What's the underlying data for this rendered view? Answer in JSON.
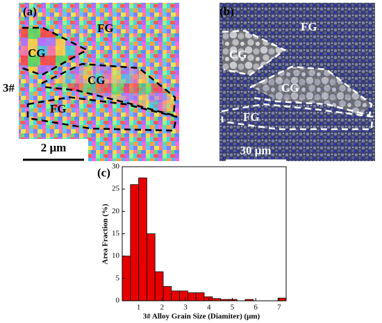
{
  "panels": {
    "a": {
      "label": "(a)",
      "side_label": "3#",
      "regions": [
        "FG",
        "CG",
        "CG",
        "FG"
      ],
      "scale_bar": "2 μm"
    },
    "b": {
      "label": "(b)",
      "regions": [
        "FG",
        "CG",
        "CG",
        "FG"
      ],
      "scale_bar": "30 μm"
    }
  },
  "chart_data": {
    "type": "histogram",
    "label": "(c)",
    "x_label": "3# Alloy Grain Size (Diamiter) (μm)",
    "y_label": "Area Fraction (%)",
    "bins": [
      0.3,
      0.65,
      1.0,
      1.35,
      1.7,
      2.05,
      2.4,
      2.75,
      3.1,
      3.45,
      3.8,
      4.15,
      4.5,
      4.85,
      5.2,
      5.55,
      5.9,
      6.25,
      6.6,
      6.95,
      7.3
    ],
    "values": [
      10,
      26,
      27.5,
      15,
      6.5,
      3.2,
      2.2,
      2.2,
      1.8,
      1.8,
      0.9,
      0.5,
      0.3,
      0.3,
      0,
      0.3,
      0,
      0,
      0,
      0.6
    ],
    "color": "#e60000",
    "edgecolor": "#000000",
    "xlim": [
      0.3,
      7.3
    ],
    "xticks": [
      1,
      2,
      3,
      4,
      5,
      6,
      7
    ],
    "ylim": [
      0,
      30
    ],
    "yticks": [
      0,
      5,
      10,
      15,
      20,
      25,
      30
    ]
  }
}
